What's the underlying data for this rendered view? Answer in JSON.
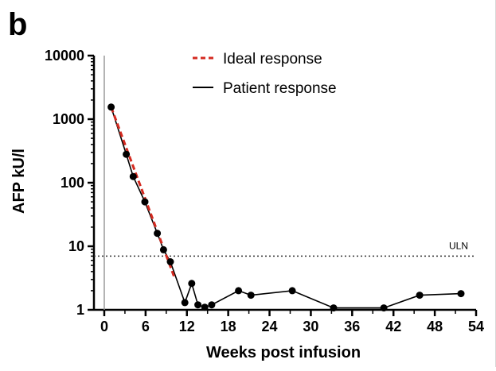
{
  "panel_label": "b",
  "chart_data": {
    "type": "line",
    "xlabel": "Weeks post infusion",
    "ylabel": "AFP kU/l",
    "xlim": [
      -1.5,
      54
    ],
    "ylim": [
      1,
      10000
    ],
    "yscale": "log",
    "xticks": [
      0,
      6,
      12,
      18,
      24,
      30,
      36,
      42,
      48,
      54
    ],
    "xtick_labels": [
      "0",
      "6",
      "12",
      "18",
      "24",
      "30",
      "36",
      "42",
      "48",
      "54"
    ],
    "yticks": [
      1,
      10,
      100,
      1000,
      10000
    ],
    "ytick_labels": [
      "1",
      "10",
      "100",
      "1000",
      "10000"
    ],
    "vline_x": 0,
    "grid": false,
    "legend_position": "top-center",
    "series": [
      {
        "name": "Patient response",
        "color": "#000000",
        "style": "solid-with-markers",
        "points": [
          {
            "x": 1,
            "y": 1550
          },
          {
            "x": 3.2,
            "y": 280
          },
          {
            "x": 4.2,
            "y": 125
          },
          {
            "x": 5.9,
            "y": 50
          },
          {
            "x": 7.7,
            "y": 16
          },
          {
            "x": 8.6,
            "y": 8.8
          },
          {
            "x": 9.6,
            "y": 5.7
          },
          {
            "x": 11.7,
            "y": 1.3
          },
          {
            "x": 12.7,
            "y": 2.6
          },
          {
            "x": 13.6,
            "y": 1.2
          },
          {
            "x": 14.6,
            "y": 1.1
          },
          {
            "x": 15.6,
            "y": 1.2
          },
          {
            "x": 19.5,
            "y": 2.0
          },
          {
            "x": 21.3,
            "y": 1.7
          },
          {
            "x": 27.3,
            "y": 2.0
          },
          {
            "x": 33.3,
            "y": 1.07
          },
          {
            "x": 40.6,
            "y": 1.07
          },
          {
            "x": 45.8,
            "y": 1.7
          },
          {
            "x": 51.8,
            "y": 1.8
          }
        ]
      },
      {
        "name": "Ideal response",
        "color": "#d42a20",
        "style": "dashed",
        "points": [
          {
            "x": 1,
            "y": 1550
          },
          {
            "x": 10.2,
            "y": 3.2
          }
        ]
      }
    ],
    "reference_lines": [
      {
        "label": "ULN",
        "y": 7,
        "style": "dotted",
        "color": "#333333"
      }
    ]
  }
}
